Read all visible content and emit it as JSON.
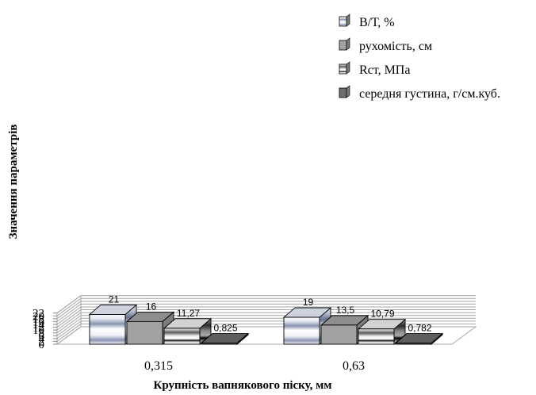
{
  "chart_data": {
    "type": "bar",
    "categories": [
      "0,315",
      "0,63"
    ],
    "series": [
      {
        "name": "В/Т, %",
        "values": [
          21,
          19
        ],
        "labels": [
          "21",
          "19"
        ],
        "style": "gradient-blue"
      },
      {
        "name": "рухомість, см",
        "values": [
          16,
          13.5
        ],
        "labels": [
          "16",
          "13,5"
        ],
        "style": "gray"
      },
      {
        "name": "Rст,  МПа",
        "values": [
          11.27,
          10.79
        ],
        "labels": [
          "11,27",
          "10,79"
        ],
        "style": "gradient-dark"
      },
      {
        "name": "середня густина, г/см.куб.",
        "values": [
          0.825,
          0.782
        ],
        "labels": [
          "0,825",
          "0,782"
        ],
        "style": "darkgray"
      }
    ],
    "xlabel": "Крупність вапнякового піску, мм",
    "ylabel": "Значення параметрів",
    "ylim": [
      0,
      22
    ],
    "yticks": [
      0,
      2,
      4,
      6,
      8,
      10,
      12,
      14,
      16,
      18,
      20,
      22
    ],
    "grid": true,
    "legend": "top-right",
    "colors": {
      "grid": "#a6a6a6",
      "gray_bar": "#a2a2a2",
      "dark_bar": "#6e6e6e",
      "blue_mid": "#8590ad"
    }
  }
}
